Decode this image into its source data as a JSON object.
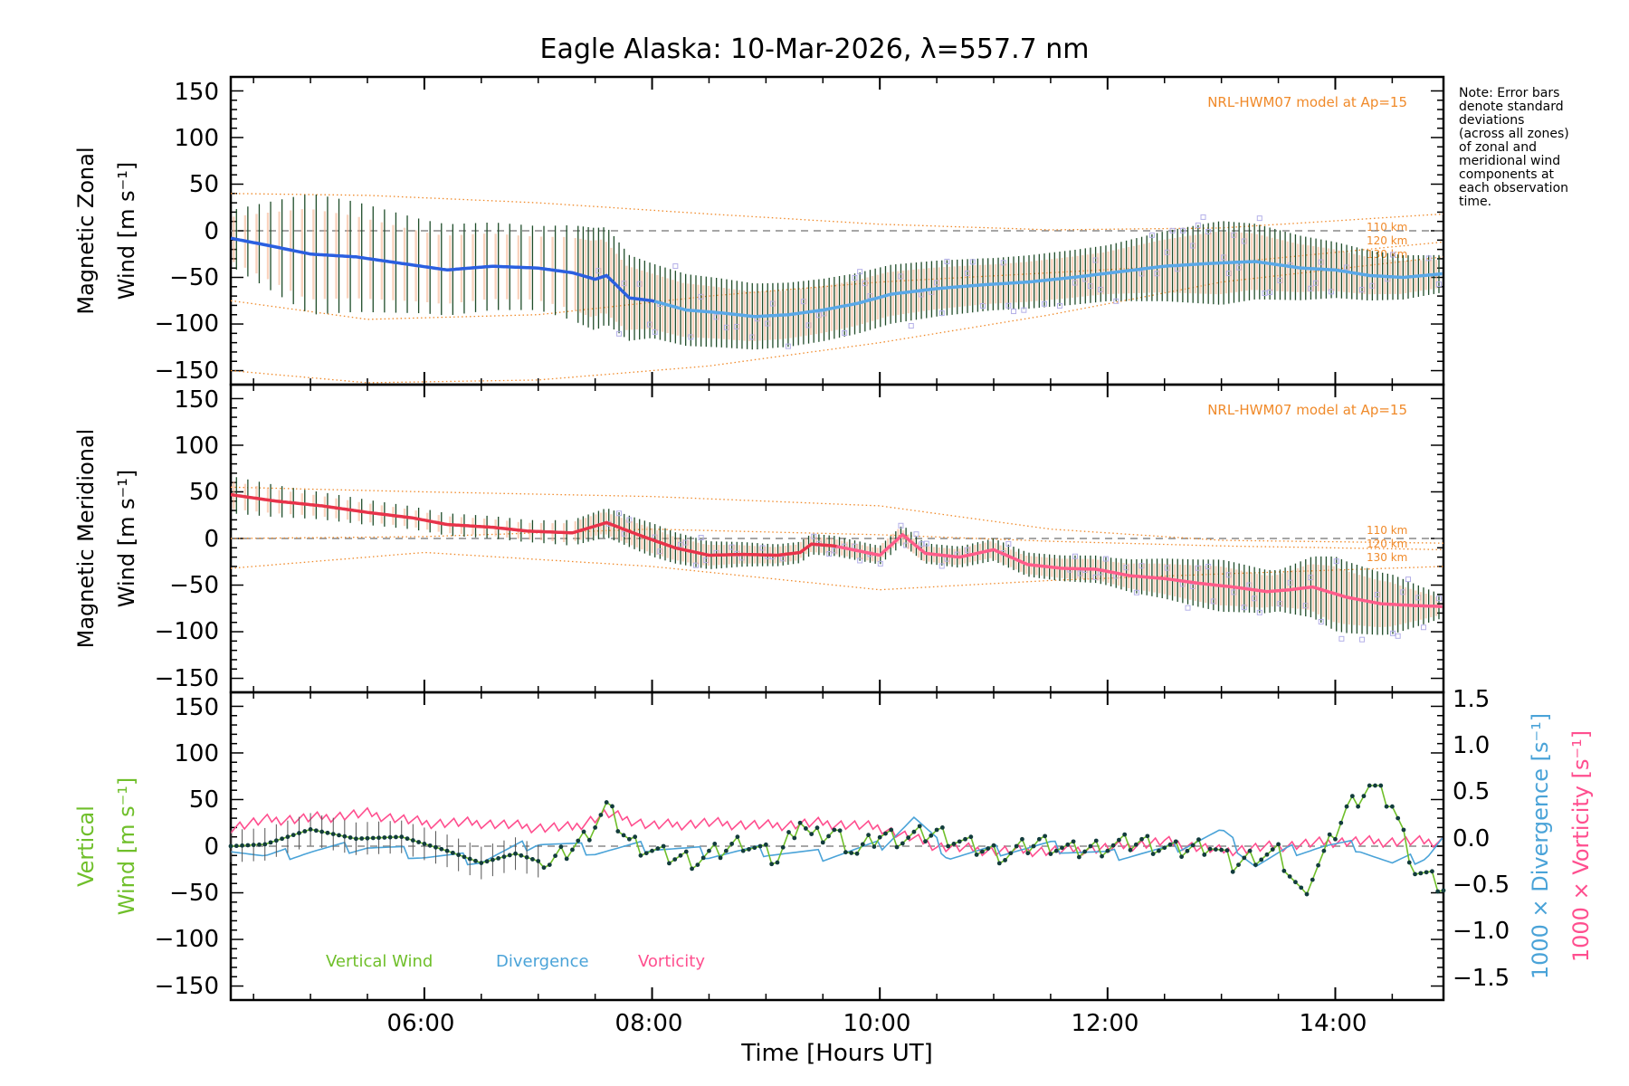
{
  "title": "Eagle Alaska: 10-Mar-2026, λ=557.7 nm",
  "note_lines": [
    "Note: Error bars",
    "denote standard",
    "deviations",
    "(across all zones)",
    "of zonal and",
    "meridional wind",
    "components at",
    "each observation",
    "time."
  ],
  "model_label": "NRL-HWM07 model at Ap=15",
  "km_labels": [
    "110 km",
    "120 km",
    "130 km"
  ],
  "xaxis": {
    "label": "Time [Hours UT]",
    "ticks": [
      6,
      8,
      10,
      12,
      14
    ],
    "tick_labels": [
      "06:00",
      "08:00",
      "10:00",
      "12:00",
      "14:00"
    ],
    "range": [
      4.3,
      14.95
    ]
  },
  "colors": {
    "zonal": "#2b5fe0",
    "zonal_light": "#5aa8e8",
    "meridional": "#e8334a",
    "meridional_light": "#ff5c8a",
    "vertical": "#6fbf2a",
    "divergence": "#4aa3d8",
    "vorticity": "#ff4f8f",
    "model": "#f08a2a",
    "zones": "#b4b0e8"
  },
  "panels": [
    {
      "id": "zonal",
      "ylabel_line1": "Magnetic Zonal",
      "ylabel_line2": "Wind [m s⁻¹]",
      "yticks": [
        "150",
        "100",
        "50",
        "0",
        "−50",
        "−100",
        "−150"
      ]
    },
    {
      "id": "meridional",
      "ylabel_line1": "Magnetic Meridional",
      "ylabel_line2": "Wind [m s⁻¹]",
      "yticks": [
        "150",
        "100",
        "50",
        "0",
        "−50",
        "−100",
        "−150"
      ]
    },
    {
      "id": "vertical",
      "ylabel_line1": "Vertical",
      "ylabel_line2": "Wind [m s⁻¹]",
      "yticks": [
        "150",
        "100",
        "50",
        "0",
        "−50",
        "−100",
        "−150"
      ],
      "right_ticks": [
        "1.5",
        "1.0",
        "0.5",
        "0.0",
        "−0.5",
        "−1.0",
        "−1.5"
      ],
      "right_label_div": "1000 × Divergence [s⁻¹]",
      "right_label_vort": "1000 × Vorticity [s⁻¹]",
      "legend": [
        "Vertical Wind",
        "Divergence",
        "Vorticity"
      ]
    }
  ],
  "chart_data": [
    {
      "type": "line",
      "title": "Magnetic Zonal Wind",
      "ylabel": "Magnetic Zonal Wind [m s-1]",
      "xlabel": "Time [Hours UT]",
      "ylim": [
        -165,
        165
      ],
      "series": [
        {
          "name": "Zonal wind (mean)",
          "x": [
            4.3,
            4.6,
            5.0,
            5.4,
            5.8,
            6.2,
            6.6,
            7.0,
            7.3,
            7.5,
            7.6,
            7.8,
            8.0,
            8.3,
            8.6,
            8.9,
            9.2,
            9.5,
            9.8,
            10.1,
            10.5,
            10.9,
            11.3,
            11.7,
            12.1,
            12.5,
            12.9,
            13.3,
            13.7,
            14.0,
            14.3,
            14.6,
            14.95
          ],
          "values": [
            -8,
            -15,
            -25,
            -28,
            -35,
            -42,
            -38,
            -40,
            -45,
            -52,
            -48,
            -72,
            -75,
            -85,
            -88,
            -92,
            -90,
            -85,
            -78,
            -68,
            -62,
            -58,
            -55,
            -50,
            -44,
            -38,
            -35,
            -33,
            -40,
            -42,
            -48,
            -50,
            -46
          ]
        },
        {
          "name": "Zonal error bar (std)",
          "x": [
            4.3,
            5.0,
            6.0,
            7.0,
            7.5,
            8.0,
            9.0,
            10.0,
            11.0,
            12.0,
            13.0,
            14.0,
            14.95
          ],
          "values": [
            30,
            65,
            50,
            45,
            55,
            40,
            35,
            32,
            28,
            30,
            45,
            30,
            20
          ]
        },
        {
          "name": "NRL-HWM07 110 km",
          "x": [
            4.3,
            5.5,
            7.0,
            8.5,
            10.0,
            11.5,
            13.0,
            14.95
          ],
          "values": [
            40,
            38,
            30,
            18,
            7,
            1,
            3,
            18
          ]
        },
        {
          "name": "NRL-HWM07 120 km",
          "x": [
            4.3,
            5.5,
            7.0,
            8.5,
            10.0,
            11.5,
            13.0,
            14.95
          ],
          "values": [
            -75,
            -95,
            -90,
            -70,
            -55,
            -45,
            -35,
            -12
          ]
        },
        {
          "name": "NRL-HWM07 130 km",
          "x": [
            4.3,
            5.5,
            7.0,
            8.5,
            10.0,
            11.5,
            13.0,
            14.95
          ],
          "values": [
            -150,
            -163,
            -160,
            -145,
            -120,
            -90,
            -55,
            -28
          ]
        }
      ]
    },
    {
      "type": "line",
      "title": "Magnetic Meridional Wind",
      "ylabel": "Magnetic Meridional Wind [m s-1]",
      "xlabel": "Time [Hours UT]",
      "ylim": [
        -165,
        165
      ],
      "series": [
        {
          "name": "Meridional wind (mean)",
          "x": [
            4.3,
            4.7,
            5.1,
            5.5,
            5.9,
            6.2,
            6.6,
            6.9,
            7.3,
            7.6,
            7.9,
            8.2,
            8.5,
            8.8,
            9.1,
            9.3,
            9.4,
            9.6,
            9.8,
            10.0,
            10.2,
            10.4,
            10.7,
            11.0,
            11.3,
            11.6,
            11.9,
            12.2,
            12.5,
            12.8,
            13.1,
            13.4,
            13.6,
            13.8,
            14.1,
            14.4,
            14.7,
            14.95
          ],
          "values": [
            47,
            40,
            35,
            28,
            22,
            15,
            12,
            8,
            6,
            17,
            3,
            -10,
            -18,
            -17,
            -18,
            -15,
            -6,
            -8,
            -13,
            -18,
            4,
            -16,
            -20,
            -12,
            -28,
            -32,
            -33,
            -40,
            -43,
            -48,
            -52,
            -57,
            -55,
            -52,
            -63,
            -70,
            -72,
            -73
          ]
        },
        {
          "name": "Meridional error bar (std)",
          "x": [
            4.3,
            5.0,
            6.0,
            7.0,
            8.0,
            9.0,
            10.0,
            11.0,
            12.0,
            13.0,
            13.5,
            14.0,
            14.5,
            14.95
          ],
          "values": [
            20,
            15,
            12,
            12,
            18,
            12,
            10,
            12,
            15,
            28,
            22,
            40,
            32,
            12
          ]
        },
        {
          "name": "NRL-HWM07 110 km",
          "x": [
            4.3,
            6.0,
            8.0,
            10.0,
            11.5,
            13.0,
            14.95
          ],
          "values": [
            55,
            50,
            45,
            35,
            10,
            -2,
            -5
          ]
        },
        {
          "name": "NRL-HWM07 120 km",
          "x": [
            4.3,
            6.0,
            8.0,
            10.0,
            11.5,
            13.0,
            14.95
          ],
          "values": [
            0,
            2,
            10,
            4,
            -3,
            -8,
            -12
          ]
        },
        {
          "name": "NRL-HWM07 130 km",
          "x": [
            4.3,
            6.0,
            8.0,
            10.0,
            11.5,
            13.0,
            14.95
          ],
          "values": [
            -32,
            -15,
            -30,
            -55,
            -45,
            -38,
            -30
          ]
        }
      ]
    },
    {
      "type": "line",
      "title": "Vertical Wind, Divergence and Vorticity",
      "ylabel": "Vertical Wind [m s-1]",
      "y2label": "1000 x Divergence / Vorticity [s-1]",
      "xlabel": "Time [Hours UT]",
      "ylim": [
        -165,
        165
      ],
      "y2lim": [
        -1.65,
        1.65
      ],
      "series": [
        {
          "name": "Vertical Wind",
          "x": [
            4.3,
            4.6,
            5.0,
            5.4,
            5.8,
            6.2,
            6.5,
            6.8,
            7.1,
            7.4,
            7.6,
            7.8,
            8.1,
            8.4,
            8.8,
            9.1,
            9.3,
            9.4,
            9.6,
            9.8,
            10.0,
            10.2,
            10.5,
            10.8,
            11.1,
            11.4,
            11.7,
            12.0,
            12.3,
            12.6,
            12.9,
            13.1,
            13.3,
            13.5,
            13.7,
            13.9,
            14.1,
            14.3,
            14.5,
            14.7,
            14.95
          ],
          "values": [
            0,
            2,
            18,
            8,
            10,
            -5,
            -18,
            -8,
            -20,
            8,
            42,
            5,
            -10,
            -15,
            5,
            -15,
            30,
            8,
            15,
            -8,
            12,
            8,
            15,
            0,
            -10,
            5,
            -5,
            0,
            5,
            -5,
            2,
            -20,
            -10,
            -8,
            -52,
            -10,
            40,
            65,
            45,
            -25,
            -45
          ]
        },
        {
          "name": "Divergence",
          "x": [
            4.3,
            4.6,
            5.0,
            5.5,
            6.0,
            6.5,
            7.0,
            7.5,
            8.0,
            8.5,
            9.0,
            9.5,
            10.0,
            10.3,
            10.6,
            11.0,
            11.5,
            12.0,
            12.5,
            13.0,
            13.3,
            13.6,
            13.9,
            14.2,
            14.5,
            14.8,
            14.95
          ],
          "values": [
            0.0,
            -0.12,
            -0.05,
            0.0,
            -0.1,
            -0.15,
            0.05,
            -0.05,
            0.0,
            -0.08,
            -0.05,
            -0.1,
            0.0,
            0.3,
            -0.1,
            -0.05,
            0.0,
            -0.1,
            -0.05,
            0.15,
            -0.2,
            -0.05,
            0.0,
            0.0,
            -0.2,
            -0.1,
            0.1
          ]
        },
        {
          "name": "Vorticity",
          "x": [
            4.3,
            4.6,
            5.0,
            5.5,
            6.0,
            6.5,
            7.0,
            7.3,
            7.6,
            8.0,
            8.5,
            9.0,
            9.5,
            10.0,
            10.5,
            11.0,
            11.5,
            12.0,
            12.5,
            13.0,
            13.5,
            14.0,
            14.5,
            14.95
          ],
          "values": [
            0.2,
            0.28,
            0.3,
            0.35,
            0.25,
            0.25,
            0.2,
            0.2,
            0.35,
            0.22,
            0.25,
            0.22,
            0.25,
            0.2,
            0.0,
            -0.05,
            -0.05,
            -0.02,
            0.05,
            -0.05,
            0.0,
            0.05,
            0.05,
            0.05
          ]
        }
      ]
    }
  ]
}
